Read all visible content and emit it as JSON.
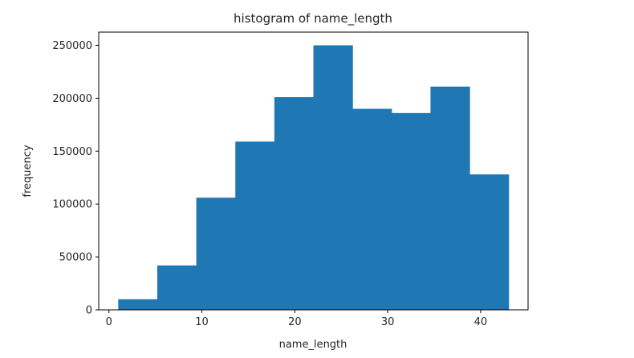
{
  "chart_data": {
    "type": "bar",
    "title": "histogram of name_length",
    "xlabel": "name_length",
    "ylabel": "frequency",
    "xlim": [
      -1.1,
      45.1
    ],
    "ylim": [
      0,
      262500
    ],
    "xticks": [
      0,
      10,
      20,
      30,
      40
    ],
    "yticks": [
      0,
      50000,
      100000,
      150000,
      200000,
      250000
    ],
    "bins": [
      {
        "x0": 1.0,
        "x1": 5.2,
        "value": 10000
      },
      {
        "x0": 5.2,
        "x1": 9.4,
        "value": 42000
      },
      {
        "x0": 9.4,
        "x1": 13.6,
        "value": 106000
      },
      {
        "x0": 13.6,
        "x1": 17.8,
        "value": 159000
      },
      {
        "x0": 17.8,
        "x1": 22.0,
        "value": 201000
      },
      {
        "x0": 22.0,
        "x1": 26.2,
        "value": 250000
      },
      {
        "x0": 26.2,
        "x1": 30.4,
        "value": 190000
      },
      {
        "x0": 30.4,
        "x1": 34.6,
        "value": 186000
      },
      {
        "x0": 34.6,
        "x1": 38.8,
        "value": 211000
      },
      {
        "x0": 38.8,
        "x1": 43.0,
        "value": 128000
      }
    ],
    "bar_color": "#1f77b4",
    "grid": false,
    "legend": "none"
  }
}
